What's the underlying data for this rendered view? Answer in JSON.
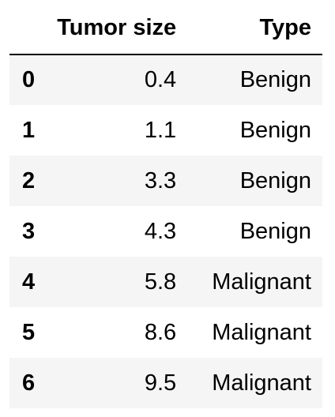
{
  "table": {
    "columns": [
      "Tumor size",
      "Type"
    ],
    "rows": [
      {
        "index": "0",
        "tumor_size": "0.4",
        "type": "Benign"
      },
      {
        "index": "1",
        "tumor_size": "1.1",
        "type": "Benign"
      },
      {
        "index": "2",
        "tumor_size": "3.3",
        "type": "Benign"
      },
      {
        "index": "3",
        "tumor_size": "4.3",
        "type": "Benign"
      },
      {
        "index": "4",
        "tumor_size": "5.8",
        "type": "Malignant"
      },
      {
        "index": "5",
        "tumor_size": "8.6",
        "type": "Malignant"
      },
      {
        "index": "6",
        "tumor_size": "9.5",
        "type": "Malignant"
      }
    ]
  },
  "colors": {
    "stripe": "#f5f5f5",
    "background": "#ffffff",
    "text": "#000000",
    "header_rule": "#000000"
  }
}
